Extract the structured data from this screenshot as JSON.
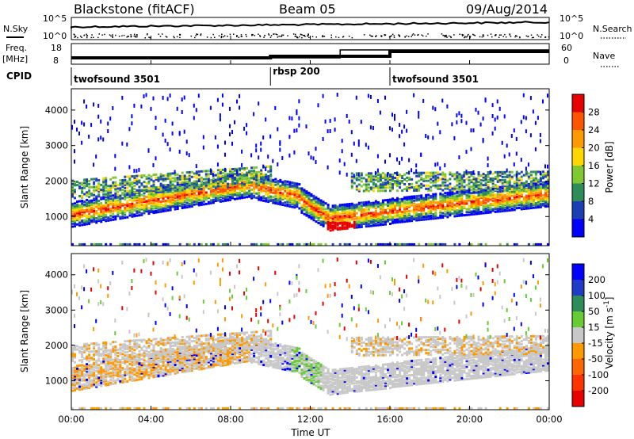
{
  "header": {
    "title": "Blackstone (fitACF)",
    "beam": "Beam 05",
    "date": "09/Aug/2014"
  },
  "top_panels": {
    "nsky_label": "N.Sky",
    "nsky_ticks": [
      "10^5",
      "10^0"
    ],
    "nsearch_label": "N.Search",
    "nsearch_ticks": [
      "10^5",
      "10^0"
    ],
    "freq_label": "Freq.",
    "freq_unit": "[MHz]",
    "freq_ticks": [
      "18",
      "8"
    ],
    "nave_label": "Nave",
    "nave_ticks": [
      "60",
      "0"
    ],
    "cpid_label": "CPID",
    "cpid_segments": [
      {
        "name": "twofsound 3501",
        "start_h": 0,
        "end_h": 10
      },
      {
        "name": "rbsp 200",
        "start_h": 10,
        "end_h": 16
      },
      {
        "name": "twofsound 3501",
        "start_h": 16,
        "end_h": 24
      }
    ]
  },
  "chart_data": [
    {
      "type": "heatmap",
      "title": "",
      "xlabel": "Time UT",
      "ylabel": "Slant Range [km]",
      "xlim_hours": [
        0,
        24
      ],
      "ylim": [
        180,
        4600
      ],
      "xticks": [
        "00:00",
        "04:00",
        "08:00",
        "12:00",
        "16:00",
        "20:00",
        "00:00"
      ],
      "yticks": [
        "1000",
        "2000",
        "3000",
        "4000"
      ],
      "colorbar": {
        "label": "Power [dB]",
        "ticks": [
          "4",
          "8",
          "12",
          "16",
          "20",
          "24",
          "28"
        ],
        "colors": [
          "#0000ff",
          "#1a3fb5",
          "#2d8c5a",
          "#7fc832",
          "#ffd700",
          "#ff9900",
          "#ff5500",
          "#e60000"
        ]
      },
      "scatter_bands": [
        {
          "name": "main",
          "start_range_km": 1100,
          "start_h": 0,
          "end_h": 24,
          "peak_power_db": 28
        },
        {
          "name": "lower",
          "start_range_km": 650,
          "start_h": 13,
          "end_h": 14,
          "peak_power_db": 30
        }
      ]
    },
    {
      "type": "heatmap",
      "title": "",
      "xlabel": "Time UT",
      "ylabel": "Slant Range [km]",
      "xlim_hours": [
        0,
        24
      ],
      "ylim": [
        180,
        4600
      ],
      "xticks": [
        "00:00",
        "04:00",
        "08:00",
        "12:00",
        "16:00",
        "20:00",
        "00:00"
      ],
      "yticks": [
        "1000",
        "2000",
        "3000",
        "4000"
      ],
      "colorbar": {
        "label": "Velocity [m s^-1]",
        "ticks": [
          "200",
          "100",
          "50",
          "15",
          "-15",
          "-50",
          "-100",
          "-200"
        ],
        "colors": [
          "#0000ff",
          "#1e3cc8",
          "#2d8c5a",
          "#66cc33",
          "#c8c8c8",
          "#ff9900",
          "#ff6600",
          "#ff3300",
          "#e60000"
        ]
      }
    }
  ]
}
